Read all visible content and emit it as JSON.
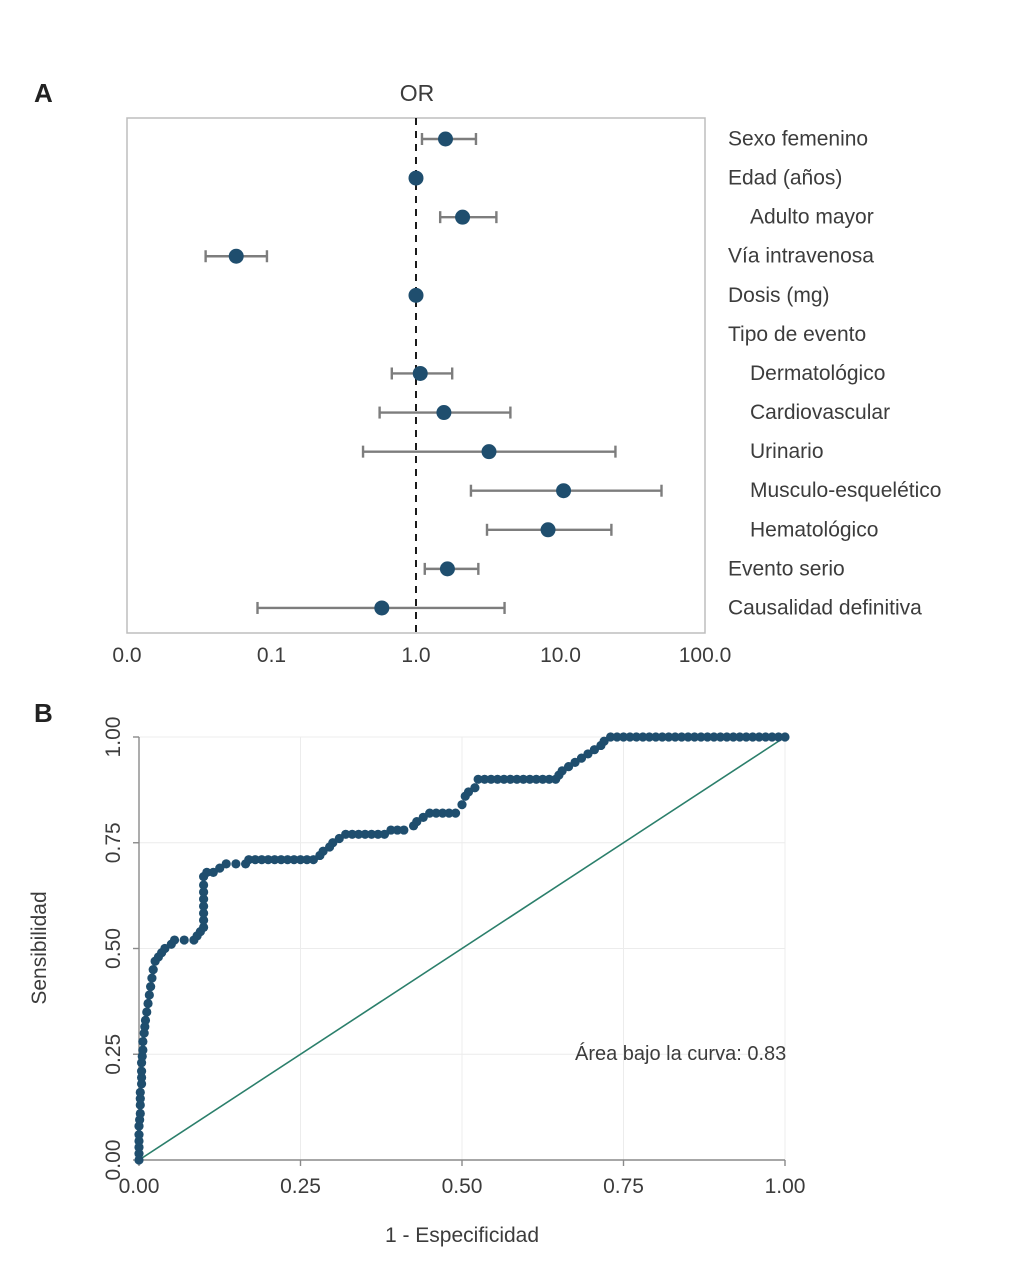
{
  "panels": {
    "a": "A",
    "b": "B"
  },
  "colors": {
    "point_navy": "#1f4e6e",
    "error_bar_gray": "#7d7d7d",
    "box_border": "#bdbdbd",
    "dashed_line": "#1a1a1a",
    "diagonal_teal": "#2b7f6b",
    "grid_gray": "#ececec",
    "axis_gray": "#8a8a8a"
  },
  "chart_data": [
    {
      "type": "scatter",
      "subtype": "forest-plot",
      "title": "OR",
      "xscale": "log",
      "x_tick_labels": [
        "0.0",
        "0.1",
        "1.0",
        "10.0",
        "100.0"
      ],
      "x_tick_values": [
        0.01,
        0.1,
        1,
        10,
        100
      ],
      "reference_line": 1.0,
      "rows": [
        {
          "label": "Sexo femenino",
          "indent": false,
          "or": 1.6,
          "ci_low": 1.1,
          "ci_high": 2.6
        },
        {
          "label": "Edad (años)",
          "indent": false,
          "or": 1.0,
          "ci_low": 0.98,
          "ci_high": 1.03
        },
        {
          "label": "Adulto mayor",
          "indent": true,
          "or": 2.1,
          "ci_low": 1.47,
          "ci_high": 3.6
        },
        {
          "label": "Vía intravenosa",
          "indent": false,
          "or": 0.057,
          "ci_low": 0.035,
          "ci_high": 0.093
        },
        {
          "label": "Dosis (mg)",
          "indent": false,
          "or": 1.0,
          "ci_low": 0.99,
          "ci_high": 1.01
        },
        {
          "label": "Tipo de evento",
          "indent": false,
          "or": null,
          "ci_low": null,
          "ci_high": null
        },
        {
          "label": "Dermatológico",
          "indent": true,
          "or": 1.07,
          "ci_low": 0.68,
          "ci_high": 1.78
        },
        {
          "label": "Cardiovascular",
          "indent": true,
          "or": 1.56,
          "ci_low": 0.56,
          "ci_high": 4.5
        },
        {
          "label": "Urinario",
          "indent": true,
          "or": 3.2,
          "ci_low": 0.43,
          "ci_high": 24
        },
        {
          "label": "Musculo-esquelético",
          "indent": true,
          "or": 10.5,
          "ci_low": 2.4,
          "ci_high": 50
        },
        {
          "label": "Hematológico",
          "indent": true,
          "or": 8.2,
          "ci_low": 3.1,
          "ci_high": 22.5
        },
        {
          "label": "Evento serio",
          "indent": false,
          "or": 1.65,
          "ci_low": 1.15,
          "ci_high": 2.7
        },
        {
          "label": "Causalidad definitiva",
          "indent": false,
          "or": 0.58,
          "ci_low": 0.08,
          "ci_high": 4.1
        }
      ]
    },
    {
      "type": "line",
      "subtype": "roc-curve",
      "xlabel": "1 - Especificidad",
      "ylabel": "Sensibilidad",
      "x_tick_labels": [
        "0.00",
        "0.25",
        "0.50",
        "0.75",
        "1.00"
      ],
      "y_tick_labels": [
        "0.00",
        "0.25",
        "0.50",
        "0.75",
        "1.00"
      ],
      "x_tick_values": [
        0,
        0.25,
        0.5,
        0.75,
        1
      ],
      "y_tick_values": [
        0,
        0.25,
        0.5,
        0.75,
        1
      ],
      "xlim": [
        0,
        1
      ],
      "ylim": [
        0,
        1
      ],
      "grid": true,
      "diagonal_reference": true,
      "annotation": "Área bajo la curva: 0.83",
      "auc": 0.83,
      "roc_points": [
        [
          0.0,
          0.0
        ],
        [
          0.0,
          0.03
        ],
        [
          0.0,
          0.06
        ],
        [
          0.0,
          0.08
        ],
        [
          0.002,
          0.11
        ],
        [
          0.002,
          0.13
        ],
        [
          0.002,
          0.16
        ],
        [
          0.004,
          0.18
        ],
        [
          0.004,
          0.21
        ],
        [
          0.004,
          0.23
        ],
        [
          0.006,
          0.26
        ],
        [
          0.006,
          0.28
        ],
        [
          0.008,
          0.3
        ],
        [
          0.01,
          0.33
        ],
        [
          0.012,
          0.35
        ],
        [
          0.014,
          0.37
        ],
        [
          0.016,
          0.39
        ],
        [
          0.018,
          0.41
        ],
        [
          0.02,
          0.43
        ],
        [
          0.022,
          0.45
        ],
        [
          0.025,
          0.47
        ],
        [
          0.03,
          0.48
        ],
        [
          0.035,
          0.49
        ],
        [
          0.04,
          0.5
        ],
        [
          0.05,
          0.51
        ],
        [
          0.055,
          0.52
        ],
        [
          0.07,
          0.52
        ],
        [
          0.085,
          0.52
        ],
        [
          0.09,
          0.53
        ],
        [
          0.095,
          0.54
        ],
        [
          0.1,
          0.55
        ],
        [
          0.1,
          0.6
        ],
        [
          0.1,
          0.65
        ],
        [
          0.1,
          0.67
        ],
        [
          0.105,
          0.68
        ],
        [
          0.115,
          0.68
        ],
        [
          0.125,
          0.69
        ],
        [
          0.135,
          0.7
        ],
        [
          0.15,
          0.7
        ],
        [
          0.165,
          0.7
        ],
        [
          0.17,
          0.71
        ],
        [
          0.19,
          0.71
        ],
        [
          0.21,
          0.71
        ],
        [
          0.23,
          0.71
        ],
        [
          0.25,
          0.71
        ],
        [
          0.27,
          0.71
        ],
        [
          0.28,
          0.72
        ],
        [
          0.285,
          0.73
        ],
        [
          0.295,
          0.74
        ],
        [
          0.3,
          0.75
        ],
        [
          0.31,
          0.76
        ],
        [
          0.32,
          0.77
        ],
        [
          0.34,
          0.77
        ],
        [
          0.36,
          0.77
        ],
        [
          0.38,
          0.77
        ],
        [
          0.39,
          0.78
        ],
        [
          0.41,
          0.78
        ],
        [
          0.425,
          0.79
        ],
        [
          0.43,
          0.8
        ],
        [
          0.44,
          0.81
        ],
        [
          0.45,
          0.82
        ],
        [
          0.47,
          0.82
        ],
        [
          0.49,
          0.82
        ],
        [
          0.5,
          0.84
        ],
        [
          0.505,
          0.86
        ],
        [
          0.51,
          0.87
        ],
        [
          0.52,
          0.88
        ],
        [
          0.525,
          0.9
        ],
        [
          0.545,
          0.9
        ],
        [
          0.565,
          0.9
        ],
        [
          0.585,
          0.9
        ],
        [
          0.605,
          0.9
        ],
        [
          0.625,
          0.9
        ],
        [
          0.645,
          0.9
        ],
        [
          0.65,
          0.91
        ],
        [
          0.655,
          0.92
        ],
        [
          0.665,
          0.93
        ],
        [
          0.675,
          0.94
        ],
        [
          0.685,
          0.95
        ],
        [
          0.695,
          0.96
        ],
        [
          0.705,
          0.97
        ],
        [
          0.715,
          0.98
        ],
        [
          0.72,
          0.99
        ],
        [
          0.73,
          1.0
        ],
        [
          0.76,
          1.0
        ],
        [
          0.79,
          1.0
        ],
        [
          0.82,
          1.0
        ],
        [
          0.85,
          1.0
        ],
        [
          0.88,
          1.0
        ],
        [
          0.91,
          1.0
        ],
        [
          0.94,
          1.0
        ],
        [
          0.97,
          1.0
        ],
        [
          1.0,
          1.0
        ]
      ]
    }
  ]
}
